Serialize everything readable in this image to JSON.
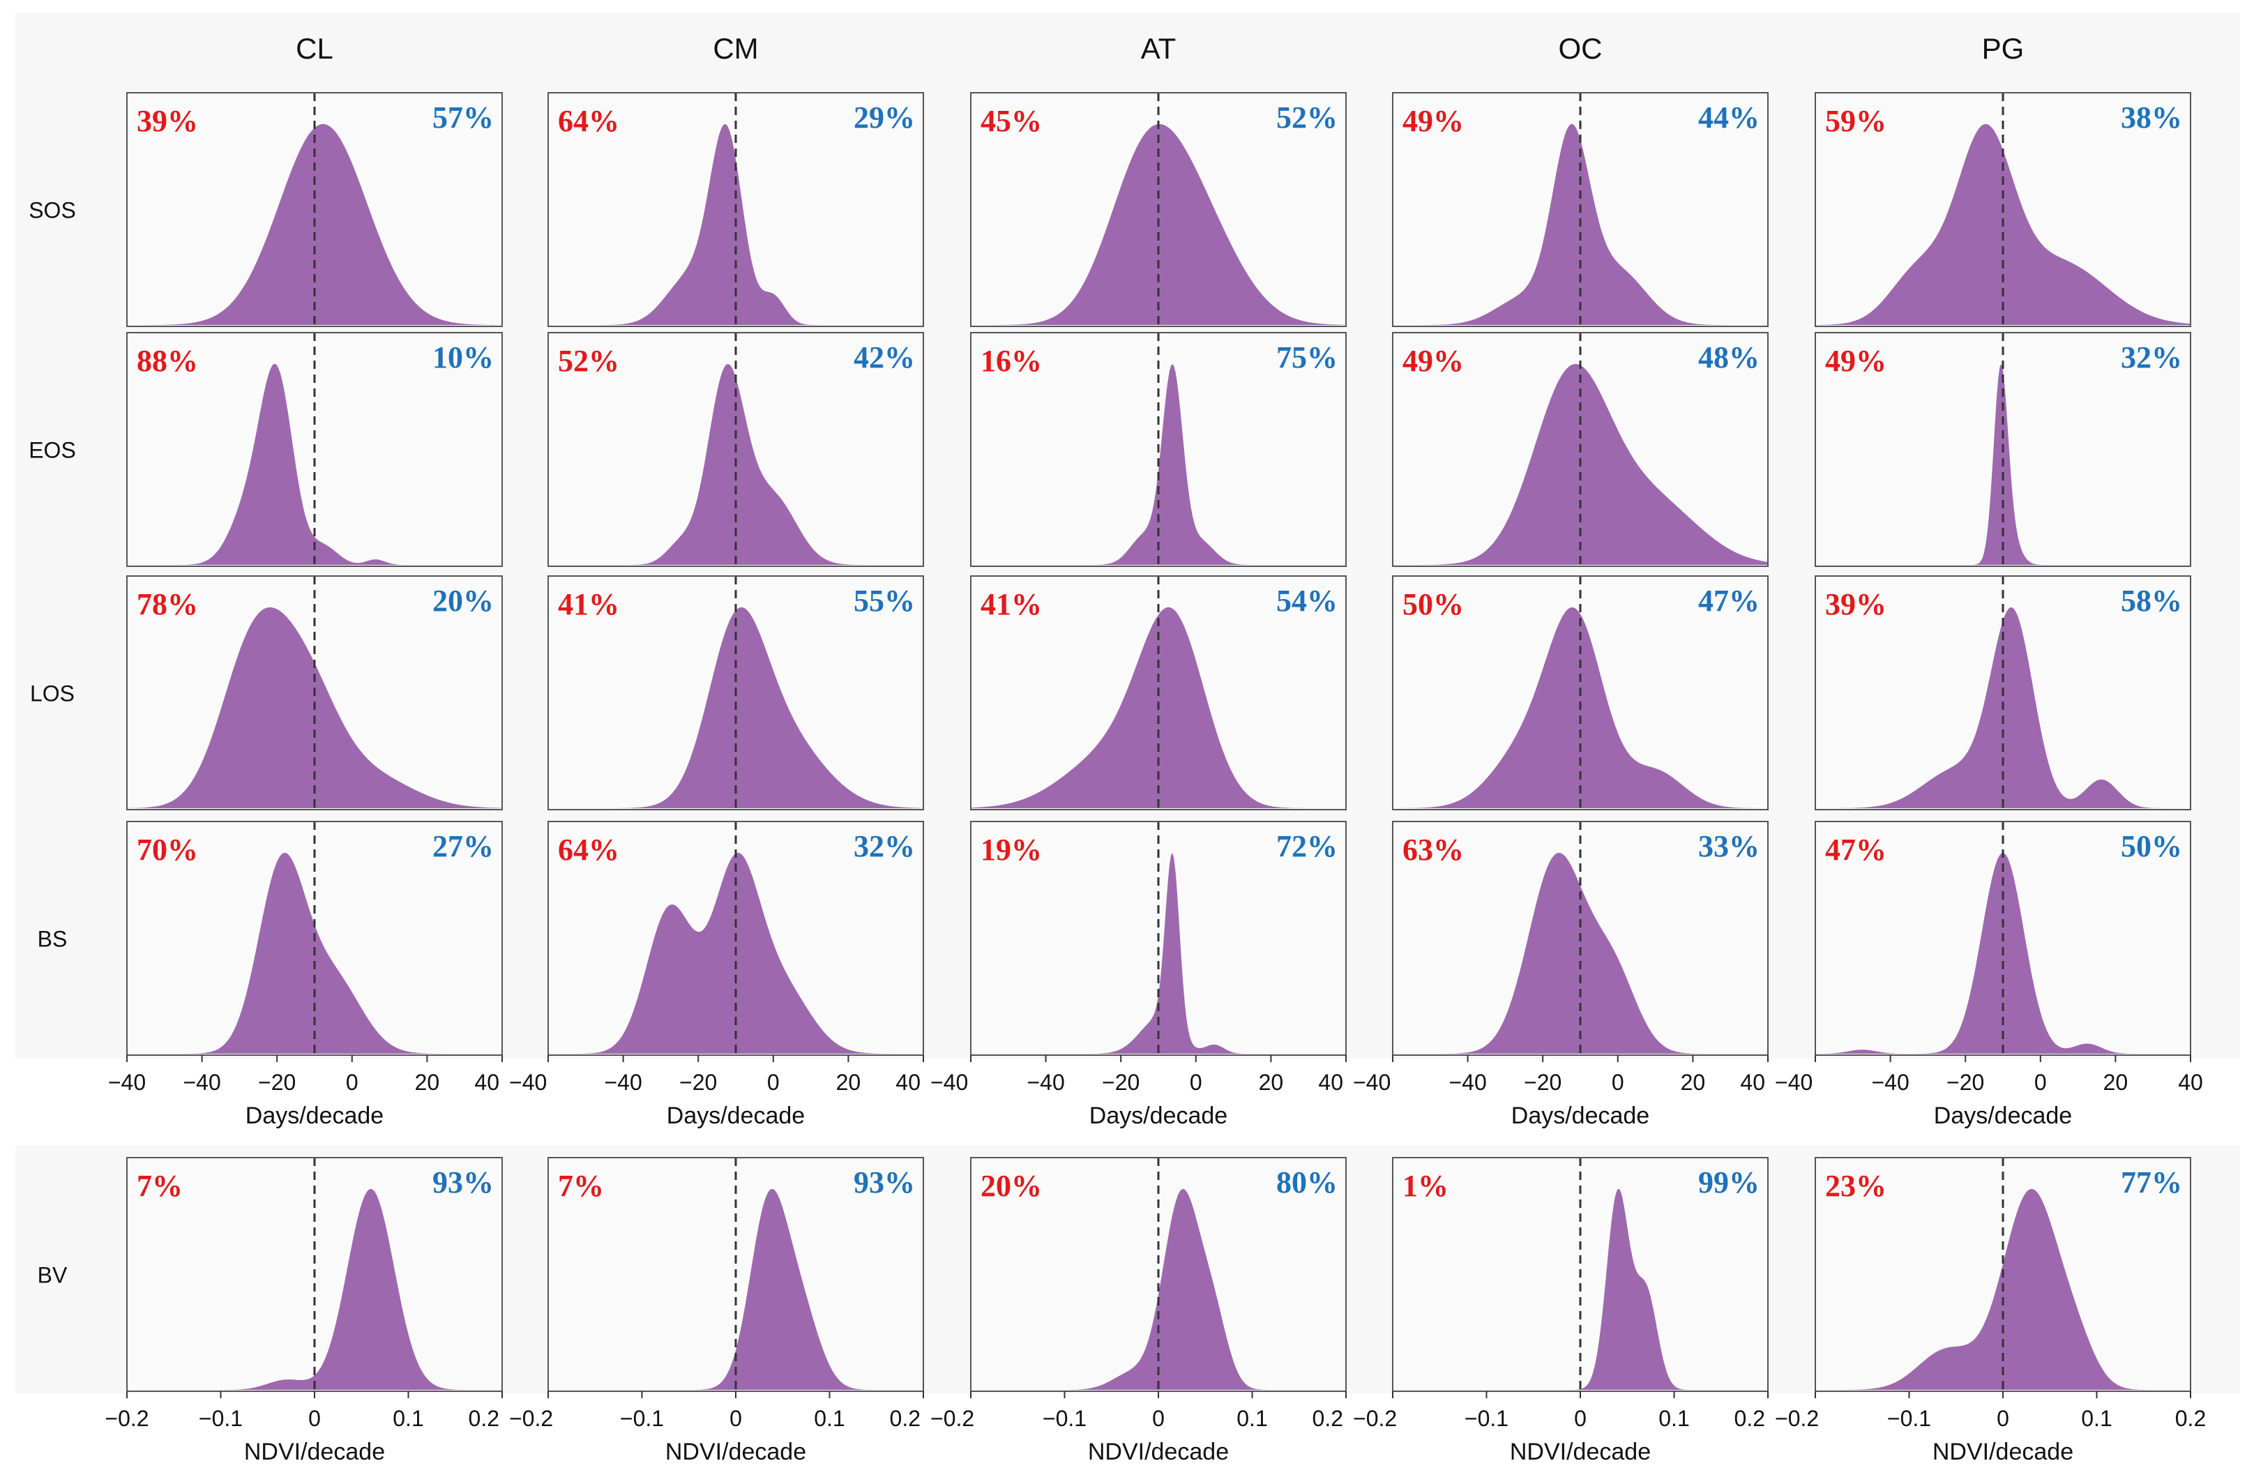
{
  "colors": {
    "density_fill": "#9e68af",
    "negative_pct": "#e3191b",
    "positive_pct": "#1f72ba",
    "background": "#f7f7f7",
    "zero_line": "#333333"
  },
  "chart_data": {
    "type": "area",
    "title": "",
    "columns": [
      "CL",
      "CM",
      "AT",
      "OC",
      "PG"
    ],
    "rows": [
      {
        "label": "SOS",
        "xlim": [
          -40,
          40
        ],
        "xticks": [
          "−40",
          "−20",
          "0",
          "20",
          "40"
        ],
        "xticks_start": "−40",
        "xlabel": "Days/decade",
        "panels": [
          {
            "col": "CL",
            "neg_pct": "39%",
            "pos_pct": "57%",
            "components": [
              [
                0.0,
                9,
                1.0
              ],
              [
                5.0,
                9,
                0.6
              ]
            ]
          },
          {
            "col": "CM",
            "neg_pct": "64%",
            "pos_pct": "29%",
            "components": [
              [
                -2.0,
                3.5,
                1.0
              ],
              [
                -10.0,
                5,
                0.25
              ],
              [
                8.0,
                2.5,
                0.15
              ]
            ]
          },
          {
            "col": "AT",
            "neg_pct": "45%",
            "pos_pct": "52%",
            "components": [
              [
                -3.0,
                8,
                1.0
              ],
              [
                8.0,
                9,
                0.7
              ]
            ]
          },
          {
            "col": "OC",
            "neg_pct": "49%",
            "pos_pct": "44%",
            "components": [
              [
                -2.0,
                4,
                1.0
              ],
              [
                8.0,
                6,
                0.3
              ],
              [
                -12.0,
                6,
                0.15
              ]
            ]
          },
          {
            "col": "PG",
            "neg_pct": "59%",
            "pos_pct": "38%",
            "components": [
              [
                -4.0,
                6,
                1.0
              ],
              [
                -18.0,
                6,
                0.3
              ],
              [
                12.0,
                10,
                0.35
              ]
            ]
          }
        ]
      },
      {
        "label": "EOS",
        "xlim": [
          -40,
          40
        ],
        "xticks": [
          "−40",
          "−20",
          "0",
          "20",
          "40"
        ],
        "xticks_start": "−40",
        "xlabel": "Days/decade",
        "panels": [
          {
            "col": "CL",
            "neg_pct": "88%",
            "pos_pct": "10%",
            "components": [
              [
                -8.0,
                3.5,
                1.0
              ],
              [
                -14.0,
                4,
                0.3
              ],
              [
                2.0,
                3,
                0.1
              ],
              [
                13.0,
                2,
                0.03
              ]
            ]
          },
          {
            "col": "CM",
            "neg_pct": "52%",
            "pos_pct": "42%",
            "components": [
              [
                -2.0,
                4,
                1.0
              ],
              [
                8.0,
                5,
                0.35
              ],
              [
                -12.0,
                3,
                0.1
              ]
            ]
          },
          {
            "col": "AT",
            "neg_pct": "16%",
            "pos_pct": "75%",
            "components": [
              [
                3.0,
                2.2,
                1.0
              ],
              [
                -3.0,
                3,
                0.15
              ],
              [
                9.0,
                3,
                0.12
              ]
            ]
          },
          {
            "col": "OC",
            "neg_pct": "49%",
            "pos_pct": "48%",
            "components": [
              [
                -2.0,
                8,
                1.0
              ],
              [
                15.0,
                10,
                0.35
              ]
            ]
          },
          {
            "col": "PG",
            "neg_pct": "49%",
            "pos_pct": "32%",
            "components": [
              [
                -0.5,
                1.5,
                1.0
              ],
              [
                1.5,
                2,
                0.15
              ]
            ]
          }
        ]
      },
      {
        "label": "LOS",
        "xlim": [
          -40,
          40
        ],
        "xticks": [
          "−40",
          "−20",
          "0",
          "20",
          "40"
        ],
        "xticks_start": "−40",
        "xlabel": "Days/decade",
        "panels": [
          {
            "col": "CL",
            "neg_pct": "78%",
            "pos_pct": "20%",
            "components": [
              [
                -13.0,
                7,
                1.0
              ],
              [
                -2.0,
                7,
                0.7
              ],
              [
                12.0,
                9,
                0.2
              ]
            ]
          },
          {
            "col": "CM",
            "neg_pct": "41%",
            "pos_pct": "55%",
            "components": [
              [
                0.0,
                6,
                1.0
              ],
              [
                9.0,
                9,
                0.5
              ]
            ]
          },
          {
            "col": "AT",
            "neg_pct": "41%",
            "pos_pct": "54%",
            "components": [
              [
                3.0,
                7,
                1.0
              ],
              [
                -10.0,
                10,
                0.3
              ]
            ]
          },
          {
            "col": "OC",
            "neg_pct": "50%",
            "pos_pct": "47%",
            "components": [
              [
                -1.0,
                6,
                1.0
              ],
              [
                -12.0,
                7,
                0.3
              ],
              [
                16.0,
                6,
                0.2
              ]
            ]
          },
          {
            "col": "PG",
            "neg_pct": "39%",
            "pos_pct": "58%",
            "components": [
              [
                2.0,
                4.5,
                1.0
              ],
              [
                -10.0,
                7,
                0.2
              ],
              [
                21.0,
                3.5,
                0.15
              ]
            ]
          }
        ]
      },
      {
        "label": "BS",
        "xlim": [
          -40,
          40
        ],
        "xticks": [
          "−40",
          "−20",
          "0",
          "20",
          "40"
        ],
        "xticks_start": "−40",
        "xlabel": "Days/decade",
        "panels": [
          {
            "col": "CL",
            "neg_pct": "70%",
            "pos_pct": "27%",
            "components": [
              [
                -7.0,
                5,
                1.0
              ],
              [
                4.0,
                6,
                0.4
              ]
            ]
          },
          {
            "col": "CM",
            "neg_pct": "64%",
            "pos_pct": "32%",
            "components": [
              [
                -14.0,
                5,
                0.8
              ],
              [
                0.0,
                5,
                1.0
              ],
              [
                10.0,
                6,
                0.35
              ]
            ]
          },
          {
            "col": "AT",
            "neg_pct": "19%",
            "pos_pct": "72%",
            "components": [
              [
                3.0,
                1.5,
                1.0
              ],
              [
                0.0,
                4,
                0.2
              ],
              [
                12.0,
                2,
                0.05
              ]
            ]
          },
          {
            "col": "OC",
            "neg_pct": "63%",
            "pos_pct": "33%",
            "components": [
              [
                -5.0,
                6,
                1.0
              ],
              [
                7.0,
                5,
                0.4
              ]
            ]
          },
          {
            "col": "PG",
            "neg_pct": "47%",
            "pos_pct": "50%",
            "components": [
              [
                0.0,
                4.5,
                1.0
              ],
              [
                18.0,
                3,
                0.05
              ],
              [
                -30.0,
                3,
                0.02
              ]
            ]
          }
        ]
      },
      {
        "label": "BV",
        "xlim": [
          -0.2,
          0.2
        ],
        "xticks": [
          "−0.1",
          "0",
          "0.1",
          "0.2"
        ],
        "xticks_start": "−0.2",
        "xlabel": "NDVI/decade",
        "panels": [
          {
            "col": "CL",
            "neg_pct": "7%",
            "pos_pct": "93%",
            "components": [
              [
                0.06,
                0.025,
                1.0
              ],
              [
                -0.03,
                0.02,
                0.05
              ]
            ]
          },
          {
            "col": "CM",
            "neg_pct": "7%",
            "pos_pct": "93%",
            "components": [
              [
                0.035,
                0.02,
                1.0
              ],
              [
                0.07,
                0.02,
                0.4
              ]
            ]
          },
          {
            "col": "AT",
            "neg_pct": "20%",
            "pos_pct": "80%",
            "components": [
              [
                0.025,
                0.02,
                1.0
              ],
              [
                0.06,
                0.015,
                0.3
              ],
              [
                -0.03,
                0.02,
                0.08
              ]
            ]
          },
          {
            "col": "OC",
            "neg_pct": "1%",
            "pos_pct": "99%",
            "components": [
              [
                0.04,
                0.012,
                1.0
              ],
              [
                0.07,
                0.012,
                0.5
              ]
            ]
          },
          {
            "col": "PG",
            "neg_pct": "23%",
            "pos_pct": "77%",
            "components": [
              [
                0.03,
                0.03,
                1.0
              ],
              [
                -0.06,
                0.03,
                0.2
              ],
              [
                0.08,
                0.02,
                0.15
              ]
            ]
          }
        ]
      }
    ]
  }
}
